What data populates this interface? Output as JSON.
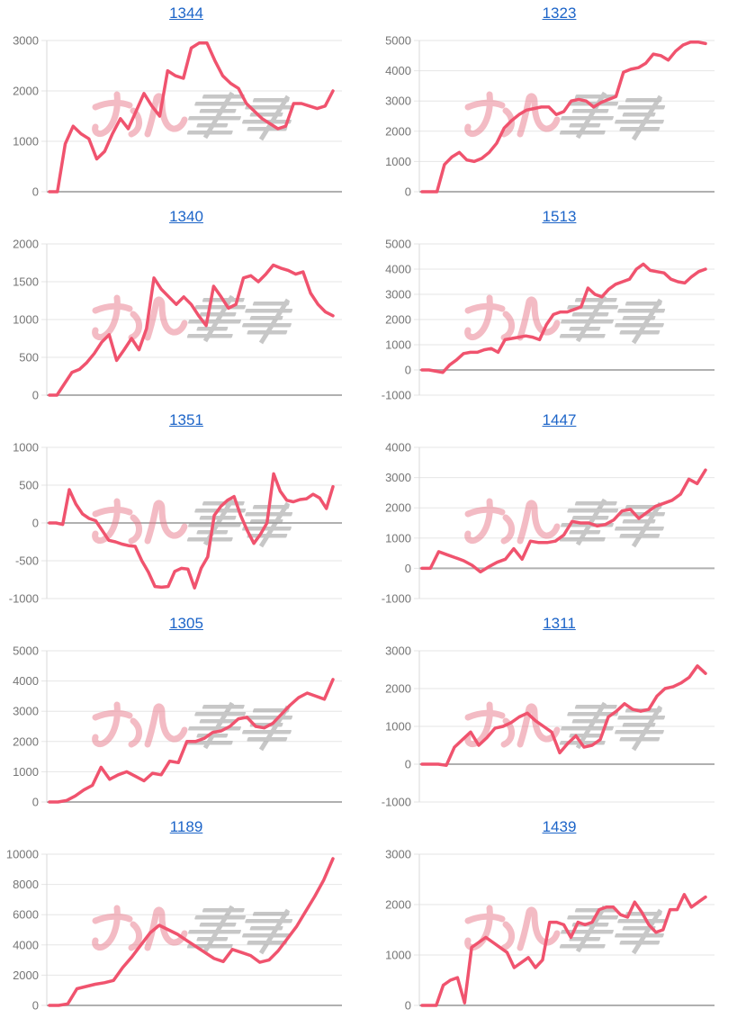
{
  "page": {
    "background": "#ffffff"
  },
  "style": {
    "line_color": "#f0536e",
    "title_color": "#1c64c8",
    "tick_color": "#757575",
    "grid_color": "#e6e6e6",
    "zero_line_color": "#b0b0b0",
    "axis_color": "#d9d9d9",
    "watermark_pink": "#e87a8a",
    "watermark_gray": "#9a9a9a"
  },
  "watermark": {
    "text_pink": "みん",
    "text_gray": "スロ"
  },
  "chart_data": [
    {
      "type": "line",
      "title": "1344",
      "xlabel": "",
      "ylabel": "",
      "ylim": [
        0,
        3000
      ],
      "yticks": [
        0,
        1000,
        2000,
        3000
      ],
      "grid": true,
      "legend": "none",
      "values": [
        0,
        0,
        950,
        1300,
        1150,
        1050,
        650,
        800,
        1150,
        1450,
        1250,
        1600,
        1950,
        1700,
        1500,
        2400,
        2300,
        2250,
        2850,
        2950,
        2950,
        2600,
        2300,
        2150,
        2050,
        1750,
        1600,
        1450,
        1350,
        1250,
        1300,
        1750,
        1750,
        1700,
        1650,
        1700,
        2000
      ]
    },
    {
      "type": "line",
      "title": "1323",
      "xlabel": "",
      "ylabel": "",
      "ylim": [
        0,
        5000
      ],
      "yticks": [
        0,
        1000,
        2000,
        3000,
        4000,
        5000
      ],
      "grid": true,
      "legend": "none",
      "values": [
        0,
        0,
        0,
        900,
        1150,
        1300,
        1050,
        1000,
        1100,
        1300,
        1600,
        2100,
        2350,
        2550,
        2700,
        2750,
        2800,
        2800,
        2550,
        2650,
        3000,
        3050,
        3000,
        2800,
        2950,
        3050,
        3150,
        3950,
        4050,
        4100,
        4250,
        4550,
        4500,
        4350,
        4650,
        4850,
        4950,
        4950,
        4900
      ]
    },
    {
      "type": "line",
      "title": "1340",
      "xlabel": "",
      "ylabel": "",
      "ylim": [
        0,
        2000
      ],
      "yticks": [
        0,
        500,
        1000,
        1500,
        2000
      ],
      "grid": true,
      "legend": "none",
      "values": [
        0,
        0,
        150,
        300,
        340,
        430,
        550,
        700,
        800,
        460,
        600,
        750,
        600,
        880,
        1550,
        1400,
        1300,
        1200,
        1300,
        1200,
        1050,
        920,
        1440,
        1300,
        1150,
        1200,
        1550,
        1580,
        1500,
        1600,
        1720,
        1680,
        1650,
        1600,
        1630,
        1350,
        1200,
        1100,
        1050
      ]
    },
    {
      "type": "line",
      "title": "1513",
      "xlabel": "",
      "ylabel": "",
      "ylim": [
        -1000,
        5000
      ],
      "yticks": [
        -1000,
        0,
        1000,
        2000,
        3000,
        4000,
        5000
      ],
      "grid": true,
      "legend": "none",
      "values": [
        0,
        0,
        -50,
        -100,
        200,
        400,
        650,
        700,
        700,
        800,
        850,
        700,
        1200,
        1250,
        1300,
        1350,
        1300,
        1200,
        1800,
        2200,
        2300,
        2300,
        2400,
        2500,
        3250,
        3000,
        2900,
        3200,
        3400,
        3500,
        3600,
        4000,
        4200,
        3950,
        3900,
        3850,
        3600,
        3500,
        3450,
        3700,
        3900,
        4000
      ]
    },
    {
      "type": "line",
      "title": "1351",
      "xlabel": "",
      "ylabel": "",
      "ylim": [
        -1000,
        1000
      ],
      "yticks": [
        -1000,
        -500,
        0,
        500,
        1000
      ],
      "grid": true,
      "legend": "none",
      "values": [
        0,
        0,
        -20,
        440,
        250,
        120,
        60,
        30,
        -100,
        -230,
        -250,
        -280,
        -300,
        -310,
        -500,
        -650,
        -840,
        -850,
        -840,
        -640,
        -600,
        -610,
        -860,
        -600,
        -450,
        100,
        220,
        300,
        350,
        100,
        -100,
        -270,
        -150,
        0,
        650,
        420,
        300,
        280,
        310,
        320,
        380,
        330,
        190,
        480
      ]
    },
    {
      "type": "line",
      "title": "1447",
      "xlabel": "",
      "ylabel": "",
      "ylim": [
        -1000,
        4000
      ],
      "yticks": [
        -1000,
        0,
        1000,
        2000,
        3000,
        4000
      ],
      "grid": true,
      "legend": "none",
      "values": [
        0,
        0,
        550,
        450,
        350,
        250,
        100,
        -120,
        50,
        200,
        300,
        650,
        300,
        900,
        850,
        850,
        900,
        1100,
        1550,
        1500,
        1500,
        1400,
        1450,
        1600,
        1900,
        1950,
        1650,
        1850,
        2050,
        2150,
        2250,
        2450,
        2950,
        2800,
        3250
      ]
    },
    {
      "type": "line",
      "title": "1305",
      "xlabel": "",
      "ylabel": "",
      "ylim": [
        0,
        5000
      ],
      "yticks": [
        0,
        1000,
        2000,
        3000,
        4000,
        5000
      ],
      "grid": true,
      "legend": "none",
      "values": [
        0,
        0,
        50,
        200,
        400,
        550,
        1150,
        750,
        900,
        1000,
        850,
        700,
        950,
        900,
        1350,
        1300,
        2000,
        2000,
        2100,
        2300,
        2350,
        2500,
        2750,
        2800,
        2500,
        2450,
        2600,
        2900,
        3200,
        3450,
        3600,
        3500,
        3400,
        4050
      ]
    },
    {
      "type": "line",
      "title": "1311",
      "xlabel": "",
      "ylabel": "",
      "ylim": [
        -1000,
        3000
      ],
      "yticks": [
        -1000,
        0,
        1000,
        2000,
        3000
      ],
      "grid": true,
      "legend": "none",
      "values": [
        0,
        0,
        0,
        -30,
        450,
        650,
        850,
        500,
        700,
        950,
        1000,
        1100,
        1250,
        1350,
        1150,
        1000,
        850,
        300,
        550,
        750,
        450,
        500,
        650,
        1250,
        1400,
        1600,
        1450,
        1400,
        1450,
        1800,
        2000,
        2050,
        2150,
        2300,
        2600,
        2400
      ]
    },
    {
      "type": "line",
      "title": "1189",
      "xlabel": "",
      "ylabel": "",
      "ylim": [
        0,
        10000
      ],
      "yticks": [
        0,
        2000,
        4000,
        6000,
        8000,
        10000
      ],
      "grid": true,
      "legend": "none",
      "values": [
        0,
        0,
        100,
        1100,
        1250,
        1400,
        1500,
        1650,
        2500,
        3200,
        4000,
        4800,
        5300,
        5000,
        4700,
        4300,
        3900,
        3500,
        3100,
        2900,
        3700,
        3500,
        3300,
        2850,
        3000,
        3600,
        4400,
        5200,
        6200,
        7200,
        8300,
        9700
      ]
    },
    {
      "type": "line",
      "title": "1439",
      "xlabel": "",
      "ylabel": "",
      "ylim": [
        0,
        3000
      ],
      "yticks": [
        0,
        1000,
        2000,
        3000
      ],
      "grid": true,
      "legend": "none",
      "values": [
        0,
        0,
        0,
        400,
        500,
        550,
        50,
        1150,
        1250,
        1350,
        1250,
        1150,
        1050,
        750,
        850,
        950,
        750,
        900,
        1650,
        1650,
        1600,
        1350,
        1650,
        1600,
        1650,
        1900,
        1950,
        1950,
        1800,
        1750,
        2050,
        1850,
        1600,
        1450,
        1500,
        1900,
        1900,
        2200,
        1950,
        2050,
        2150
      ]
    }
  ]
}
